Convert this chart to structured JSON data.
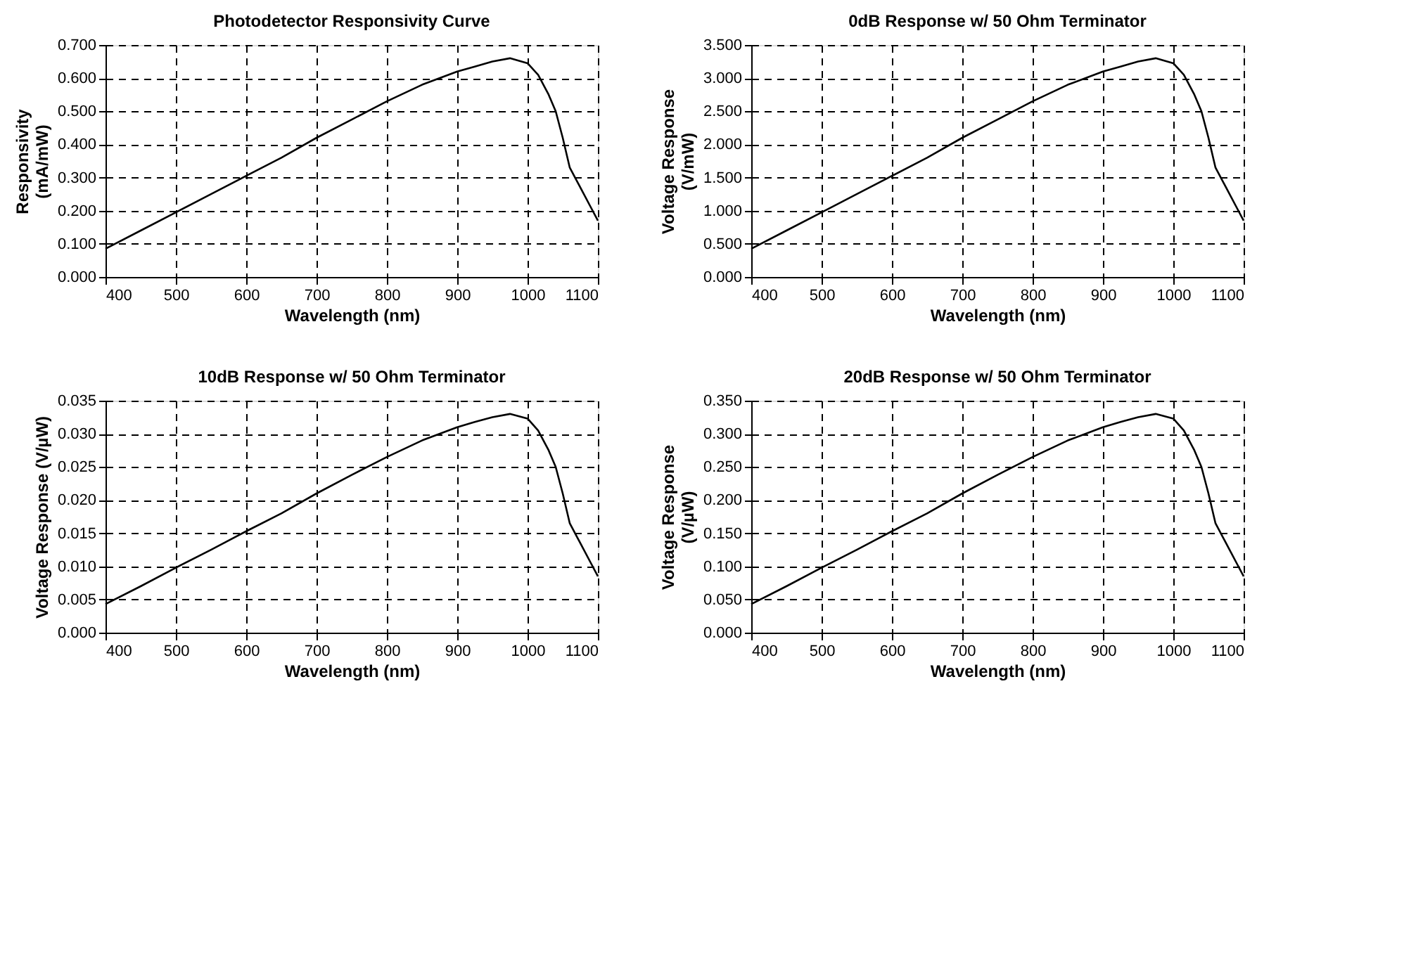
{
  "chart_data": [
    {
      "type": "line",
      "title": "Photodetector Responsivity Curve",
      "xlabel": "Wavelength (nm)",
      "ylabel": "Responsivity\n(mA/mW)",
      "x": [
        400,
        450,
        500,
        550,
        600,
        650,
        700,
        750,
        800,
        850,
        900,
        925,
        950,
        975,
        1000,
        1015,
        1030,
        1040,
        1050,
        1060,
        1075,
        1090,
        1100
      ],
      "series": [
        {
          "color": "#000000",
          "values": [
            0.085,
            0.14,
            0.195,
            0.25,
            0.305,
            0.36,
            0.42,
            0.475,
            0.53,
            0.58,
            0.62,
            0.635,
            0.65,
            0.66,
            0.645,
            0.61,
            0.55,
            0.5,
            0.42,
            0.33,
            0.27,
            0.21,
            0.17
          ]
        }
      ],
      "xlim": [
        400,
        1100
      ],
      "xticks": [
        400,
        500,
        600,
        700,
        800,
        900,
        1000,
        1100
      ],
      "ylim": [
        0,
        0.7
      ],
      "yticks": [
        {
          "value": 0,
          "label": "0.000"
        },
        {
          "value": 0.1,
          "label": "0.100"
        },
        {
          "value": 0.2,
          "label": "0.200"
        },
        {
          "value": 0.3,
          "label": "0.300"
        },
        {
          "value": 0.4,
          "label": "0.400"
        },
        {
          "value": 0.5,
          "label": "0.500"
        },
        {
          "value": 0.6,
          "label": "0.600"
        },
        {
          "value": 0.7,
          "label": "0.700"
        }
      ],
      "grid": true,
      "marker": "none",
      "line_style": "solid"
    },
    {
      "type": "line",
      "title": "0dB Response w/ 50 Ohm Terminator",
      "xlabel": "Wavelength (nm)",
      "ylabel": "Voltage Response\n(V/mW)",
      "x": [
        400,
        450,
        500,
        550,
        600,
        650,
        700,
        750,
        800,
        850,
        900,
        925,
        950,
        975,
        1000,
        1015,
        1030,
        1040,
        1050,
        1060,
        1075,
        1090,
        1100
      ],
      "series": [
        {
          "color": "#000000",
          "values": [
            0.425,
            0.7,
            0.975,
            1.25,
            1.525,
            1.8,
            2.1,
            2.375,
            2.65,
            2.9,
            3.1,
            3.175,
            3.25,
            3.3,
            3.225,
            3.05,
            2.75,
            2.5,
            2.1,
            1.65,
            1.35,
            1.05,
            0.85
          ]
        }
      ],
      "xlim": [
        400,
        1100
      ],
      "xticks": [
        400,
        500,
        600,
        700,
        800,
        900,
        1000,
        1100
      ],
      "ylim": [
        0,
        3.5
      ],
      "yticks": [
        {
          "value": 0,
          "label": "0.000"
        },
        {
          "value": 0.5,
          "label": "0.500"
        },
        {
          "value": 1,
          "label": "1.000"
        },
        {
          "value": 1.5,
          "label": "1.500"
        },
        {
          "value": 2,
          "label": "2.000"
        },
        {
          "value": 2.5,
          "label": "2.500"
        },
        {
          "value": 3,
          "label": "3.000"
        },
        {
          "value": 3.5,
          "label": "3.500"
        }
      ],
      "grid": true,
      "marker": "none",
      "line_style": "solid"
    },
    {
      "type": "line",
      "title": "10dB Response w/ 50 Ohm Terminator",
      "xlabel": "Wavelength (nm)",
      "ylabel": "Voltage Response (V/µW)",
      "x": [
        400,
        450,
        500,
        550,
        600,
        650,
        700,
        750,
        800,
        850,
        900,
        925,
        950,
        975,
        1000,
        1015,
        1030,
        1040,
        1050,
        1060,
        1075,
        1090,
        1100
      ],
      "series": [
        {
          "color": "#000000",
          "values": [
            0.0043,
            0.007,
            0.0098,
            0.0125,
            0.0153,
            0.018,
            0.021,
            0.0238,
            0.0265,
            0.029,
            0.031,
            0.0318,
            0.0325,
            0.033,
            0.0323,
            0.0305,
            0.0275,
            0.025,
            0.021,
            0.0165,
            0.0135,
            0.0105,
            0.0085
          ]
        }
      ],
      "xlim": [
        400,
        1100
      ],
      "xticks": [
        400,
        500,
        600,
        700,
        800,
        900,
        1000,
        1100
      ],
      "ylim": [
        0,
        0.035
      ],
      "yticks": [
        {
          "value": 0,
          "label": "0.000"
        },
        {
          "value": 0.005,
          "label": "0.005"
        },
        {
          "value": 0.01,
          "label": "0.010"
        },
        {
          "value": 0.015,
          "label": "0.015"
        },
        {
          "value": 0.02,
          "label": "0.020"
        },
        {
          "value": 0.025,
          "label": "0.025"
        },
        {
          "value": 0.03,
          "label": "0.030"
        },
        {
          "value": 0.035,
          "label": "0.035"
        }
      ],
      "grid": true,
      "marker": "none",
      "line_style": "solid"
    },
    {
      "type": "line",
      "title": "20dB Response w/ 50 Ohm Terminator",
      "xlabel": "Wavelength (nm)",
      "ylabel": "Voltage Response\n(V/µW)",
      "x": [
        400,
        450,
        500,
        550,
        600,
        650,
        700,
        750,
        800,
        850,
        900,
        925,
        950,
        975,
        1000,
        1015,
        1030,
        1040,
        1050,
        1060,
        1075,
        1090,
        1100
      ],
      "series": [
        {
          "color": "#000000",
          "values": [
            0.043,
            0.07,
            0.098,
            0.125,
            0.153,
            0.18,
            0.21,
            0.238,
            0.265,
            0.29,
            0.31,
            0.318,
            0.325,
            0.33,
            0.323,
            0.305,
            0.275,
            0.25,
            0.21,
            0.165,
            0.135,
            0.105,
            0.085
          ]
        }
      ],
      "xlim": [
        400,
        1100
      ],
      "xticks": [
        400,
        500,
        600,
        700,
        800,
        900,
        1000,
        1100
      ],
      "ylim": [
        0,
        0.35
      ],
      "yticks": [
        {
          "value": 0,
          "label": "0.000"
        },
        {
          "value": 0.05,
          "label": "0.050"
        },
        {
          "value": 0.1,
          "label": "0.100"
        },
        {
          "value": 0.15,
          "label": "0.150"
        },
        {
          "value": 0.2,
          "label": "0.200"
        },
        {
          "value": 0.25,
          "label": "0.250"
        },
        {
          "value": 0.3,
          "label": "0.300"
        },
        {
          "value": 0.35,
          "label": "0.350"
        }
      ],
      "grid": true,
      "marker": "none",
      "line_style": "solid"
    }
  ]
}
